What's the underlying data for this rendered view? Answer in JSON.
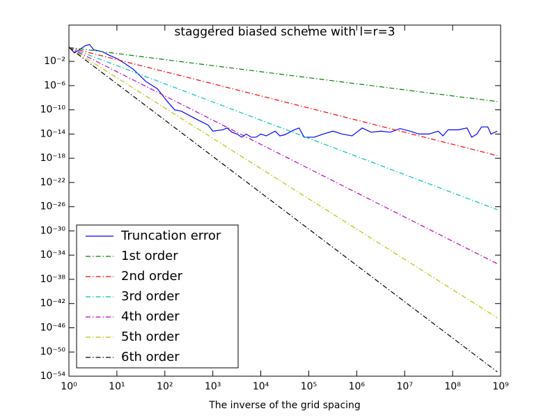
{
  "chart_data": {
    "type": "line",
    "title": "staggered biased scheme with l=r=3",
    "x_label": "The inverse of the grid spacing",
    "xscale": "log",
    "yscale": "log",
    "xlim": [
      1,
      1000000000.0
    ],
    "ylim": [
      1e-54,
      10000.0
    ],
    "xticks": [
      {
        "value": 1,
        "label": "10⁰"
      },
      {
        "value": 10,
        "label": "10¹"
      },
      {
        "value": 100,
        "label": "10²"
      },
      {
        "value": 1000,
        "label": "10³"
      },
      {
        "value": 10000,
        "label": "10⁴"
      },
      {
        "value": 100000,
        "label": "10⁵"
      },
      {
        "value": 1000000,
        "label": "10⁶"
      },
      {
        "value": 10000000,
        "label": "10⁷"
      },
      {
        "value": 100000000,
        "label": "10⁸"
      },
      {
        "value": 1000000000,
        "label": "10⁹"
      }
    ],
    "yticks": [
      {
        "value": 1e-54,
        "label": "10⁻⁵⁴"
      },
      {
        "value": 1e-50,
        "label": "10⁻⁵⁰"
      },
      {
        "value": 1e-46,
        "label": "10⁻⁴⁶"
      },
      {
        "value": 1e-42,
        "label": "10⁻⁴²"
      },
      {
        "value": 1e-38,
        "label": "10⁻³⁸"
      },
      {
        "value": 1e-34,
        "label": "10⁻³⁴"
      },
      {
        "value": 1e-30,
        "label": "10⁻³⁰"
      },
      {
        "value": 1e-26,
        "label": "10⁻²⁶"
      },
      {
        "value": 1e-22,
        "label": "10⁻²²"
      },
      {
        "value": 1e-18,
        "label": "10⁻¹⁸"
      },
      {
        "value": 1e-14,
        "label": "10⁻¹⁴"
      },
      {
        "value": 1e-10,
        "label": "10⁻¹⁰"
      },
      {
        "value": 1e-06,
        "label": "10⁻⁶"
      },
      {
        "value": 0.01,
        "label": "10⁻²"
      }
    ],
    "legend": "lower left",
    "series": [
      {
        "name": "Truncation error",
        "color": "#0000ff",
        "linestyle": "solid",
        "x": [
          1,
          1.3,
          1.7,
          2.2,
          2.7,
          3.3,
          4,
          5,
          7,
          10,
          15,
          22,
          40,
          70,
          110,
          160,
          220,
          420,
          800,
          1000,
          1600,
          2000,
          2500,
          3200,
          4000,
          5000,
          6300,
          8000,
          10000,
          13000,
          20000,
          25000,
          32000,
          50000,
          63000,
          80000,
          130000,
          200000,
          320000,
          500000,
          800000,
          1300000,
          2000000,
          3200000,
          5000000,
          8000000,
          13000000,
          20000000,
          32000000,
          50000000,
          63000000,
          80000000,
          130000000,
          200000000,
          250000000,
          320000000,
          400000000,
          540000000,
          630000000,
          850000000
        ],
        "values": [
          2.5,
          0.25,
          1,
          4,
          6,
          0.8,
          0.6,
          0.4,
          0.1,
          0.03,
          0.004,
          0.0005,
          5e-06,
          3e-07,
          3e-09,
          1e-10,
          6e-11,
          4e-12,
          3e-13,
          3e-14,
          5e-14,
          1e-13,
          2e-14,
          1e-14,
          3e-15,
          1e-14,
          3e-15,
          3e-15,
          1e-14,
          5e-15,
          3e-14,
          5e-15,
          8e-15,
          5e-14,
          1e-13,
          3e-15,
          3e-15,
          1e-14,
          3e-14,
          1e-14,
          5e-15,
          1e-13,
          2e-14,
          3e-14,
          2e-14,
          8e-14,
          3e-14,
          1e-14,
          1e-14,
          3e-14,
          5e-15,
          5e-14,
          5e-14,
          1e-13,
          3e-15,
          1e-14,
          1.5e-13,
          1.5e-13,
          1e-14,
          3e-14
        ]
      },
      {
        "name": "1st order",
        "color": "#008000",
        "linestyle": "dashdot",
        "x": [
          1,
          850000000
        ],
        "values": [
          2,
          2.35e-09
        ]
      },
      {
        "name": "2nd order",
        "color": "#ff0000",
        "linestyle": "dashdot",
        "x": [
          1,
          850000000
        ],
        "values": [
          2,
          2.76e-18
        ]
      },
      {
        "name": "3rd order",
        "color": "#00bfbf",
        "linestyle": "dashdot",
        "x": [
          1,
          850000000
        ],
        "values": [
          2,
          3.24e-27
        ]
      },
      {
        "name": "4th order",
        "color": "#bf00bf",
        "linestyle": "dashdot",
        "x": [
          1,
          850000000
        ],
        "values": [
          2,
          3.8e-36
        ]
      },
      {
        "name": "5th order",
        "color": "#bfbf00",
        "linestyle": "dashdot",
        "x": [
          1,
          850000000
        ],
        "values": [
          2,
          4.5e-45
        ]
      },
      {
        "name": "6th order",
        "color": "#000000",
        "linestyle": "dashdot",
        "x": [
          1,
          850000000
        ],
        "values": [
          2,
          5.3e-54
        ]
      }
    ]
  }
}
